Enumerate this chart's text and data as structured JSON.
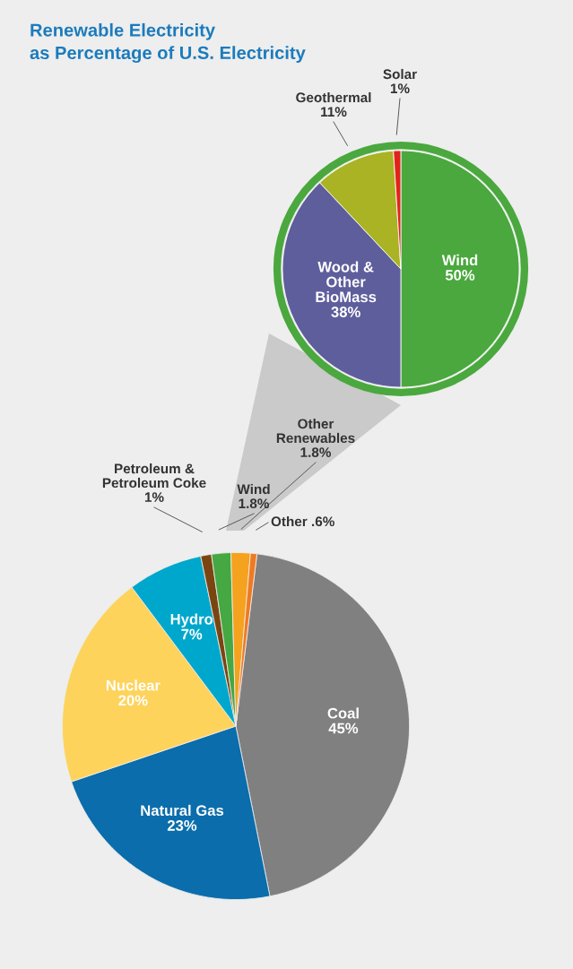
{
  "chart_data": [
    {
      "type": "pie",
      "title": "Renewable Electricity\nas Percentage of U.S. Electricity",
      "categories": [
        "Wind",
        "Wood &\nOther\nBioMass",
        "Geothermal",
        "Solar"
      ],
      "values": [
        50,
        38,
        11,
        1
      ],
      "value_labels": [
        "50%",
        "38%",
        "11%",
        "1%"
      ],
      "colors": [
        "#4aa83e",
        "#5f5e9c",
        "#a9b323",
        "#e2231a"
      ]
    },
    {
      "type": "pie",
      "categories": [
        "Coal",
        "Natural Gas",
        "Nuclear",
        "Hydro",
        "Petroleum &\nPetroleum Coke",
        "Wind",
        "Other\nRenewables",
        "Other"
      ],
      "values": [
        45,
        23,
        20,
        7,
        1,
        1.8,
        1.8,
        0.6
      ],
      "value_labels": [
        "45%",
        "23%",
        "20%",
        "7%",
        "1%",
        "1.8%",
        "1.8%",
        ".6%"
      ],
      "colors": [
        "#808080",
        "#0b6dab",
        "#fdd35c",
        "#00a7cc",
        "#7b4511",
        "#45a842",
        "#f5a21f",
        "#f07a22"
      ]
    }
  ]
}
